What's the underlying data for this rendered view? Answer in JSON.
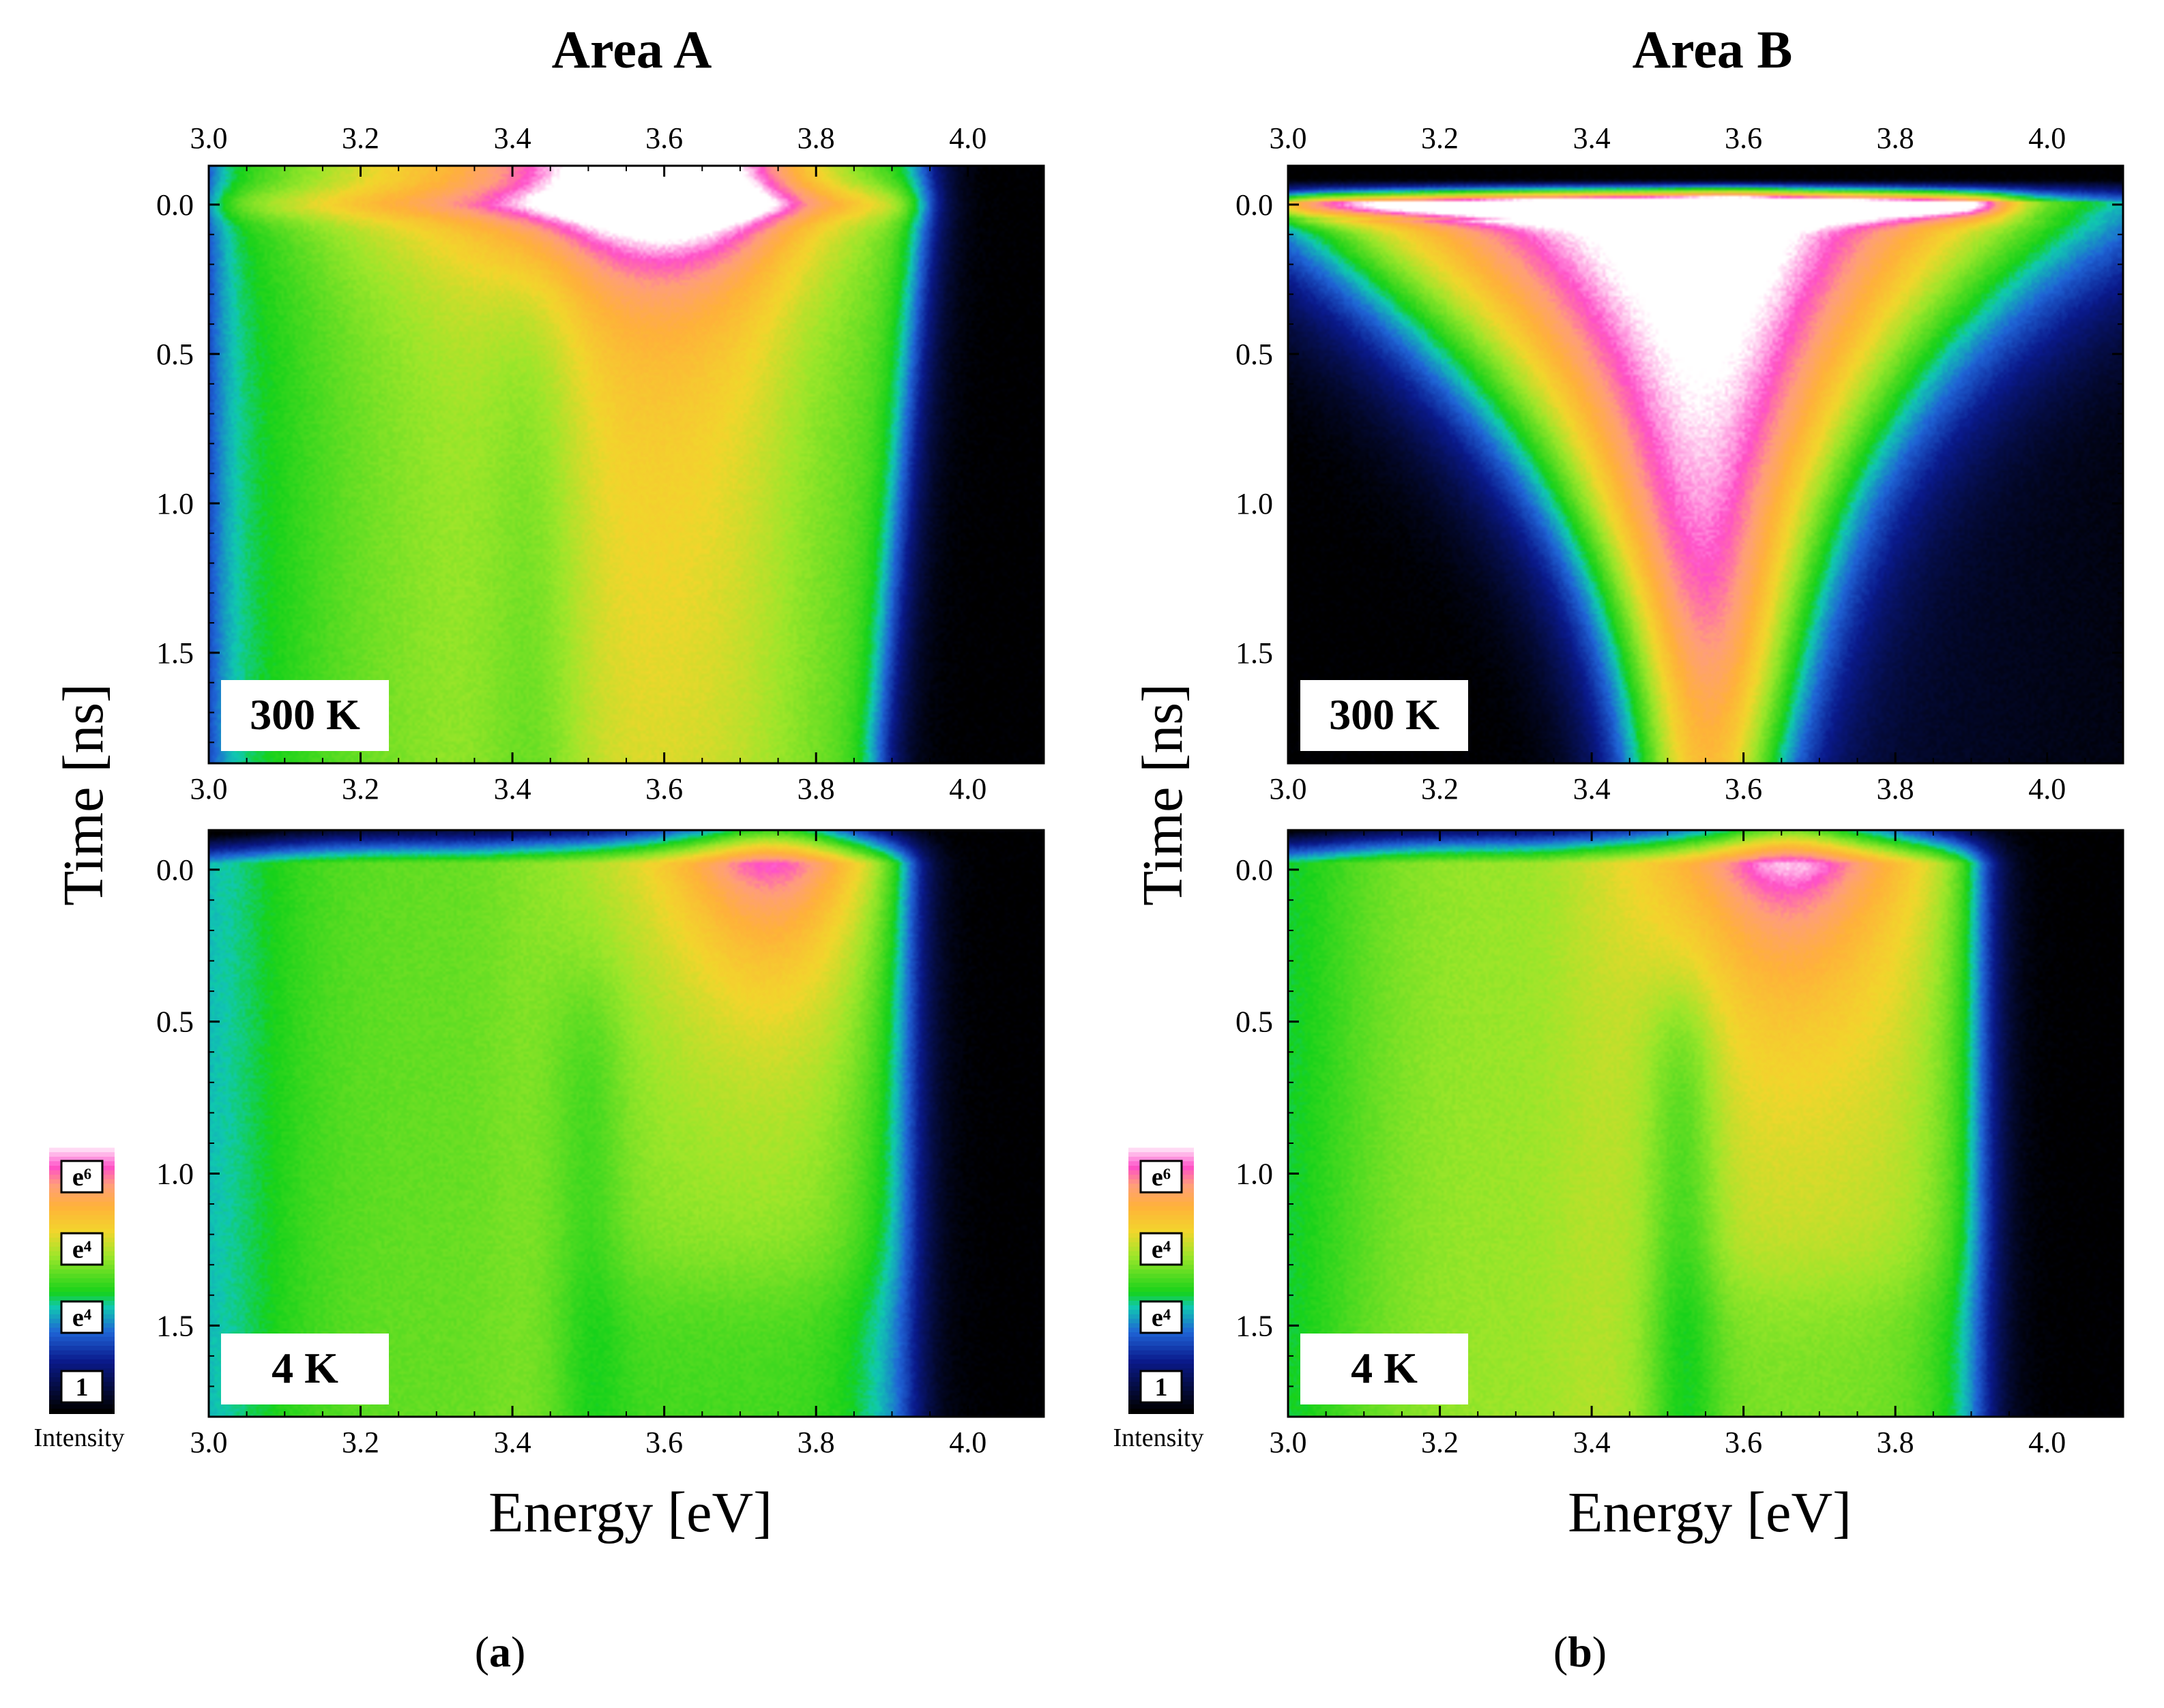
{
  "figure": {
    "panel_labels": [
      "a",
      "b"
    ],
    "colors": {
      "black": "#000000",
      "dark_blue": "#0a1a8c",
      "blue": "#1f64d6",
      "teal": "#10c9b0",
      "green": "#16d21a",
      "lime": "#9ce62a",
      "yellow": "#f2d62c",
      "orange": "#ffb13a",
      "salmon": "#ff9e7a",
      "pink": "#ff4fc8",
      "white": "#ffffff",
      "contour": "#8a6a4a"
    }
  },
  "chart_data": [
    {
      "type": "heatmap",
      "id": "A-300K",
      "column_title": "Area A",
      "label": "300 K",
      "xlabel": "",
      "ylabel": "Time [ns]",
      "xlim": [
        3.0,
        4.1
      ],
      "ylim": [
        1.87,
        -0.13
      ],
      "x_ticks": [
        "3.0",
        "3.2",
        "3.4",
        "3.6",
        "3.8",
        "4.0"
      ],
      "y_ticks": [
        "0.0",
        "0.5",
        "1.0",
        "1.5"
      ],
      "intensity_scale": [
        "1",
        "e⁴",
        "e⁴",
        "e⁶"
      ],
      "intensity_label": "Intensity",
      "params": {
        "background": 3.2,
        "hi": 6.6,
        "peakE": 3.62,
        "tail": 3.55,
        "tauIn": 1.2,
        "edgeE": 3.95,
        "edgeDrift": -0.06,
        "dipE": 3.43,
        "dipDepth": 0.6
      }
    },
    {
      "type": "heatmap",
      "id": "B-300K",
      "column_title": "Area B",
      "label": "300 K",
      "xlabel": "",
      "ylabel": "Time [ns]",
      "xlim": [
        3.0,
        4.1
      ],
      "ylim": [
        1.87,
        -0.13
      ],
      "x_ticks": [
        "3.0",
        "3.2",
        "3.4",
        "3.6",
        "3.8",
        "4.0"
      ],
      "y_ticks": [
        "0.0",
        "0.5",
        "1.0",
        "1.5"
      ],
      "intensity_scale": [
        "1",
        "e⁴",
        "e⁴",
        "e⁶"
      ],
      "intensity_label": "Intensity",
      "params": {
        "background": 0.0,
        "hi": 7.3,
        "peakE": 3.58,
        "vshape": true
      }
    },
    {
      "type": "heatmap",
      "id": "A-4K",
      "column_title": "Area A",
      "label": "4 K",
      "xlabel": "Energy [eV]",
      "ylabel": "Time [ns]",
      "xlim": [
        3.0,
        4.1
      ],
      "ylim": [
        1.8,
        -0.13
      ],
      "x_ticks": [
        "3.0",
        "3.2",
        "3.4",
        "3.6",
        "3.8",
        "4.0"
      ],
      "y_ticks": [
        "0.0",
        "0.5",
        "1.0",
        "1.5"
      ],
      "intensity_scale": [
        "1",
        "e⁴",
        "e⁴",
        "e⁶"
      ],
      "intensity_label": "Intensity",
      "params": {
        "background": 2.6,
        "hi": 6.9,
        "peakE": 3.74,
        "plateauL": 3.38,
        "edgeE": 3.93,
        "dipE": 3.5,
        "dipDepth": 0.5
      }
    },
    {
      "type": "heatmap",
      "id": "B-4K",
      "column_title": "Area B",
      "label": "4 K",
      "xlabel": "Energy [eV]",
      "ylabel": "Time [ns]",
      "xlim": [
        3.0,
        4.1
      ],
      "ylim": [
        1.8,
        -0.13
      ],
      "x_ticks": [
        "3.0",
        "3.2",
        "3.4",
        "3.6",
        "3.8",
        "4.0"
      ],
      "y_ticks": [
        "0.0",
        "0.5",
        "1.0",
        "1.5"
      ],
      "intensity_scale": [
        "1",
        "e⁴",
        "e⁴",
        "e⁶"
      ],
      "intensity_label": "Intensity",
      "params": {
        "background": 3.0,
        "hi": 6.9,
        "peakE": 3.66,
        "plateauL": 3.36,
        "edgeE": 3.92,
        "dipE": 3.52,
        "dipDepth": 0.9
      }
    }
  ]
}
